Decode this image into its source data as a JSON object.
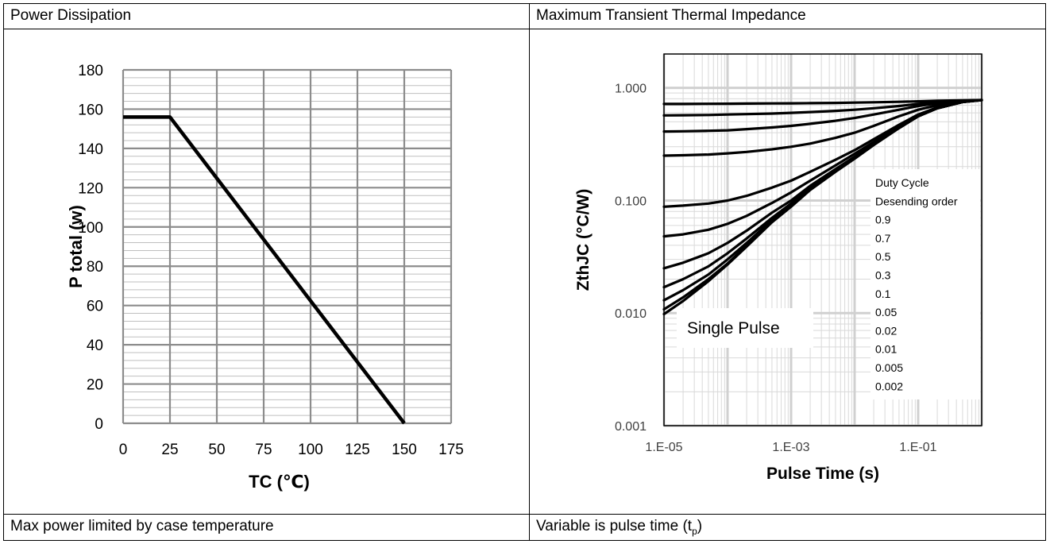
{
  "panels": {
    "left_header": "Power Dissipation",
    "right_header": "Maximum Transient Thermal Impedance",
    "left_footer": "Max power limited by case temperature",
    "right_footer_prefix": "Variable is pulse time (t",
    "right_footer_sub": "p",
    "right_footer_suffix": ")"
  },
  "chart_data": [
    {
      "type": "line",
      "title": "",
      "xlabel": "TC (℃)",
      "ylabel": "P total (w)",
      "xlim": [
        0,
        175
      ],
      "ylim": [
        0,
        180
      ],
      "x_ticks": [
        "0",
        "25",
        "50",
        "75",
        "100",
        "125",
        "150",
        "175"
      ],
      "y_ticks": [
        "0",
        "20",
        "40",
        "60",
        "80",
        "100",
        "120",
        "140",
        "160",
        "180"
      ],
      "grid": true,
      "series": [
        {
          "x": [
            0,
            25,
            150
          ],
          "y": [
            156,
            156,
            0
          ],
          "color": "#000000"
        }
      ]
    },
    {
      "type": "line",
      "title": "",
      "xlabel": "Pulse Time (s)",
      "ylabel": "ZthJC (°C/W)",
      "x_scale": "log",
      "y_scale": "log",
      "xlim": [
        1e-05,
        1
      ],
      "ylim": [
        0.001,
        2
      ],
      "x_ticks": [
        "1.E-05",
        "1.E-03",
        "1.E-01"
      ],
      "y_ticks": [
        "0.001",
        "0.010",
        "0.100",
        "1.000"
      ],
      "grid": true,
      "annotation": "Single Pulse",
      "legend_lines": [
        "Duty Cycle",
        "Desending order",
        "0.9",
        "0.7",
        "0.5",
        "0.3",
        "0.1",
        "0.05",
        "0.02",
        "0.01",
        "0.005",
        "0.002"
      ],
      "x": [
        1e-05,
        2e-05,
        5e-05,
        0.0001,
        0.0002,
        0.0005,
        0.001,
        0.002,
        0.005,
        0.01,
        0.02,
        0.05,
        0.1,
        0.2,
        0.5,
        1
      ],
      "series": [
        {
          "name": "0.9",
          "values": [
            0.72,
            0.72,
            0.722,
            0.724,
            0.726,
            0.728,
            0.73,
            0.732,
            0.736,
            0.74,
            0.745,
            0.752,
            0.76,
            0.768,
            0.775,
            0.78
          ]
        },
        {
          "name": "0.7",
          "values": [
            0.57,
            0.572,
            0.575,
            0.58,
            0.585,
            0.592,
            0.6,
            0.61,
            0.625,
            0.64,
            0.66,
            0.69,
            0.72,
            0.745,
            0.77,
            0.78
          ]
        },
        {
          "name": "0.5",
          "values": [
            0.41,
            0.412,
            0.416,
            0.42,
            0.43,
            0.445,
            0.46,
            0.48,
            0.51,
            0.54,
            0.58,
            0.64,
            0.69,
            0.73,
            0.765,
            0.78
          ]
        },
        {
          "name": "0.3",
          "values": [
            0.25,
            0.252,
            0.256,
            0.262,
            0.27,
            0.285,
            0.3,
            0.32,
            0.36,
            0.4,
            0.46,
            0.56,
            0.64,
            0.7,
            0.76,
            0.78
          ]
        },
        {
          "name": "0.1",
          "values": [
            0.088,
            0.09,
            0.094,
            0.1,
            0.11,
            0.13,
            0.15,
            0.18,
            0.23,
            0.28,
            0.35,
            0.47,
            0.58,
            0.67,
            0.75,
            0.78
          ]
        },
        {
          "name": "0.05",
          "values": [
            0.048,
            0.05,
            0.055,
            0.062,
            0.073,
            0.095,
            0.118,
            0.15,
            0.205,
            0.26,
            0.33,
            0.45,
            0.57,
            0.66,
            0.75,
            0.78
          ]
        },
        {
          "name": "0.02",
          "values": [
            0.025,
            0.028,
            0.034,
            0.042,
            0.054,
            0.078,
            0.1,
            0.135,
            0.19,
            0.245,
            0.32,
            0.44,
            0.56,
            0.66,
            0.75,
            0.78
          ]
        },
        {
          "name": "0.01",
          "values": [
            0.017,
            0.02,
            0.026,
            0.034,
            0.046,
            0.07,
            0.094,
            0.13,
            0.186,
            0.24,
            0.315,
            0.44,
            0.56,
            0.66,
            0.75,
            0.78
          ]
        },
        {
          "name": "0.005",
          "values": [
            0.013,
            0.016,
            0.022,
            0.03,
            0.042,
            0.067,
            0.091,
            0.127,
            0.183,
            0.238,
            0.313,
            0.44,
            0.56,
            0.66,
            0.75,
            0.78
          ]
        },
        {
          "name": "0.002",
          "values": [
            0.0108,
            0.0138,
            0.02,
            0.0275,
            0.04,
            0.065,
            0.089,
            0.125,
            0.181,
            0.236,
            0.312,
            0.44,
            0.56,
            0.66,
            0.75,
            0.78
          ]
        },
        {
          "name": "Single Pulse",
          "values": [
            0.0098,
            0.0128,
            0.0192,
            0.027,
            0.039,
            0.064,
            0.088,
            0.124,
            0.18,
            0.235,
            0.311,
            0.44,
            0.56,
            0.66,
            0.75,
            0.78
          ]
        }
      ]
    }
  ]
}
